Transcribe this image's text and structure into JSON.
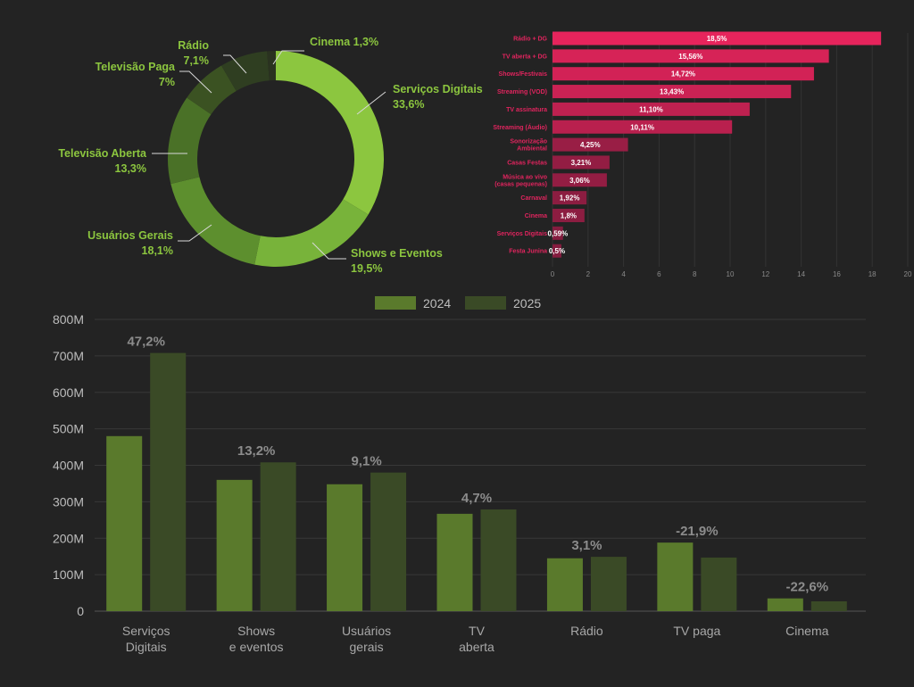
{
  "chart_data": [
    {
      "type": "pie",
      "title": "",
      "slices": [
        {
          "name": "Serviços Digitais",
          "value": 33.6,
          "label": "33,6%",
          "color": "#8cc63f"
        },
        {
          "name": "Shows e Eventos",
          "value": 19.5,
          "label": "19,5%",
          "color": "#78b33a"
        },
        {
          "name": "Usuários Gerais",
          "value": 18.1,
          "label": "18,1%",
          "color": "#5d8f2e"
        },
        {
          "name": "Televisão Aberta",
          "value": 13.3,
          "label": "13,3%",
          "color": "#4a7127"
        },
        {
          "name": "Televisão Paga",
          "value": 7.0,
          "label": "7%",
          "color": "#3b5222"
        },
        {
          "name": "Rádio",
          "value": 7.1,
          "label": "7,1%",
          "color": "#2f3e21"
        },
        {
          "name": "Cinema",
          "value": 1.3,
          "label": "1,3%",
          "color": "#2a3220"
        }
      ]
    },
    {
      "type": "bar",
      "orientation": "horizontal",
      "categories": [
        "Rádio + DG",
        "TV aberta + DG",
        "Shows/Festivais",
        "Streaming (VOD)",
        "TV assinatura",
        "Streaming (Áudio)",
        "Sonorização Ambiental",
        "Casas Festas",
        "Música ao vivo (casas pequenas)",
        "Carnaval",
        "Cinema",
        "Serviços Digitais",
        "Festa Junina"
      ],
      "values": [
        18.5,
        15.56,
        14.72,
        13.43,
        11.1,
        10.11,
        4.25,
        3.21,
        3.06,
        1.92,
        1.8,
        0.59,
        0.5
      ],
      "value_labels": [
        "18,5%",
        "15,56%",
        "14,72%",
        "13,43%",
        "11,10%",
        "10,11%",
        "4,25%",
        "3,21%",
        "3,06%",
        "1,92%",
        "1,8%",
        "0,59%",
        "0,5%"
      ],
      "xlim": [
        0,
        20
      ],
      "xticks": [
        0,
        2,
        4,
        6,
        8,
        10,
        12,
        14,
        16,
        18,
        20
      ],
      "grid": true
    },
    {
      "type": "bar",
      "orientation": "vertical",
      "categories": [
        "Serviços Digitais",
        "Shows e eventos",
        "Usuários gerais",
        "TV aberta",
        "Rádio",
        "TV paga",
        "Cinema"
      ],
      "series": [
        {
          "name": "2024",
          "values": [
            480,
            360,
            348,
            267,
            145,
            188,
            35
          ],
          "color": "#5a7a2c"
        },
        {
          "name": "2025",
          "values": [
            708,
            408,
            380,
            279,
            149,
            147,
            27
          ],
          "color": "#3a4a26"
        }
      ],
      "change_labels": [
        "47,2%",
        "13,2%",
        "9,1%",
        "4,7%",
        "3,1%",
        "-21,9%",
        "-22,6%"
      ],
      "ylim": [
        0,
        800
      ],
      "yticks": [
        "0",
        "100M",
        "200M",
        "300M",
        "400M",
        "500M",
        "600M",
        "700M",
        "800M"
      ],
      "legend": "top-center",
      "grid": true
    }
  ]
}
